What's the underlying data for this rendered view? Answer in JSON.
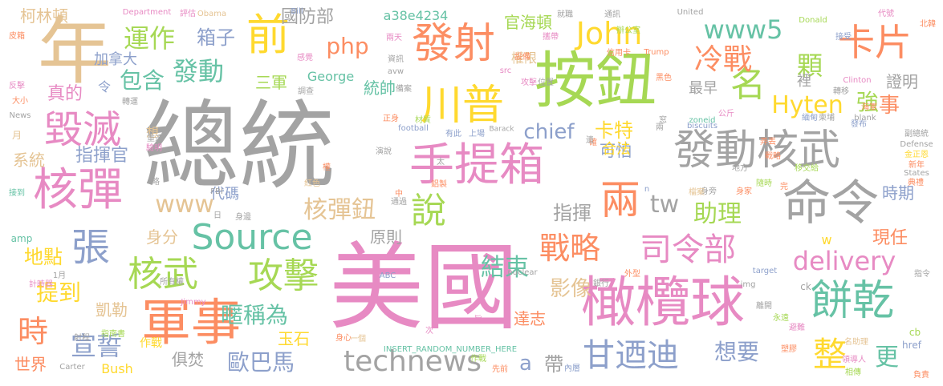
{
  "words": [
    {
      "text": "總統",
      "color": "#a3a3a3"
    },
    {
      "text": "美國",
      "color": "#e78ac3"
    },
    {
      "text": "按鈕",
      "color": "#a6d854"
    },
    {
      "text": "年",
      "color": "#e5c494"
    },
    {
      "text": "橄欖球",
      "color": "#e78ac3"
    },
    {
      "text": "軍事",
      "color": "#fc8d62"
    },
    {
      "text": "手提箱",
      "color": "#e78ac3"
    },
    {
      "text": "命令",
      "color": "#a3a3a3"
    },
    {
      "text": "發動核武",
      "color": "#a3a3a3"
    },
    {
      "text": "發射",
      "color": "#fc8d62"
    },
    {
      "text": "川普",
      "color": "#ffd92f"
    },
    {
      "text": "核彈",
      "color": "#e78ac3"
    },
    {
      "text": "Source",
      "color": "#66c2a5"
    },
    {
      "text": "前",
      "color": "#ffd92f"
    },
    {
      "text": "毀滅",
      "color": "#e78ac3"
    },
    {
      "text": "餅乾",
      "color": "#66c2a5"
    },
    {
      "text": "攻擊",
      "color": "#a6d854"
    },
    {
      "text": "核武",
      "color": "#a6d854"
    },
    {
      "text": "卡片",
      "color": "#fc8d62"
    },
    {
      "text": "司令部",
      "color": "#e78ac3"
    },
    {
      "text": "甘迺迪",
      "color": "#8da0cb"
    },
    {
      "text": "兩",
      "color": "#fc8d62"
    },
    {
      "text": "technews",
      "color": "#a3a3a3"
    },
    {
      "text": "名",
      "color": "#a6d854"
    },
    {
      "text": "John",
      "color": "#ffd92f"
    },
    {
      "text": "戰略",
      "color": "#fc8d62"
    },
    {
      "text": "張",
      "color": "#8da0cb"
    },
    {
      "text": "說",
      "color": "#a6d854"
    },
    {
      "text": "整",
      "color": "#ffd92f"
    },
    {
      "text": "時",
      "color": "#fc8d62"
    },
    {
      "text": "冷戰",
      "color": "#fc8d62"
    },
    {
      "text": "運作",
      "color": "#a6d854"
    },
    {
      "text": "宣誓",
      "color": "#8da0cb"
    },
    {
      "text": "www5",
      "color": "#66c2a5"
    },
    {
      "text": "delivery",
      "color": "#e78ac3"
    },
    {
      "text": "核彈鈕",
      "color": "#e5c494"
    },
    {
      "text": "www",
      "color": "#e5c494"
    },
    {
      "text": "發動",
      "color": "#66c2a5"
    },
    {
      "text": "結束",
      "color": "#66c2a5"
    },
    {
      "text": "tw",
      "color": "#a3a3a3"
    },
    {
      "text": "助理",
      "color": "#a6d854"
    },
    {
      "text": "php",
      "color": "#fc8d62"
    },
    {
      "text": "顆",
      "color": "#a6d854"
    },
    {
      "text": "Hyten",
      "color": "#ffd92f"
    },
    {
      "text": "提到",
      "color": "#ffd92f"
    },
    {
      "text": "更",
      "color": "#66c2a5"
    },
    {
      "text": "想要",
      "color": "#8da0cb"
    },
    {
      "text": "歐巴馬",
      "color": "#8da0cb"
    },
    {
      "text": "暱稱為",
      "color": "#66c2a5"
    },
    {
      "text": "箱子",
      "color": "#8da0cb"
    },
    {
      "text": "包含",
      "color": "#66c2a5"
    },
    {
      "text": "強",
      "color": "#a6d854"
    },
    {
      "text": "指揮官",
      "color": "#8da0cb"
    },
    {
      "text": "chief",
      "color": "#8da0cb"
    },
    {
      "text": "a",
      "color": "#8da0cb"
    },
    {
      "text": "帶",
      "color": "#a3a3a3"
    },
    {
      "text": "影像",
      "color": "#e5c494"
    },
    {
      "text": "地點",
      "color": "#ffd92f"
    },
    {
      "text": "卡特",
      "color": "#ffd92f"
    },
    {
      "text": "指揮",
      "color": "#a3a3a3"
    },
    {
      "text": "事",
      "color": "#fc8d62"
    },
    {
      "text": "現任",
      "color": "#fc8d62"
    },
    {
      "text": "官海頓",
      "color": "#a6d854"
    },
    {
      "text": "國防部",
      "color": "#a3a3a3"
    },
    {
      "text": "柯林頓",
      "color": "#e5c494"
    },
    {
      "text": "三軍",
      "color": "#a6d854"
    },
    {
      "text": "統帥",
      "color": "#66c2a5"
    },
    {
      "text": "系統",
      "color": "#e5c494"
    },
    {
      "text": "加拿大",
      "color": "#8da0cb"
    },
    {
      "text": "真的",
      "color": "#e78ac3"
    },
    {
      "text": "玉石",
      "color": "#ffd92f"
    },
    {
      "text": "達志",
      "color": "#fc8d62"
    },
    {
      "text": "世界",
      "color": "#fc8d62"
    },
    {
      "text": "時期",
      "color": "#8da0cb"
    },
    {
      "text": "可怕",
      "color": "#8da0cb"
    },
    {
      "text": "最早",
      "color": "#a3a3a3"
    },
    {
      "text": "證明",
      "color": "#a3a3a3"
    },
    {
      "text": "原則",
      "color": "#a3a3a3"
    },
    {
      "text": "身分",
      "color": "#e5c494"
    },
    {
      "text": "代碼",
      "color": "#8da0cb"
    },
    {
      "text": "凱勒",
      "color": "#e5c494"
    },
    {
      "text": "俱焚",
      "color": "#a3a3a3"
    },
    {
      "text": "合法",
      "color": "#ffd92f"
    },
    {
      "text": "Bush",
      "color": "#ffd92f"
    },
    {
      "text": "George",
      "color": "#66c2a5"
    },
    {
      "text": "a38e4234",
      "color": "#66c2a5"
    },
    {
      "text": "權限",
      "color": "#e5c494"
    },
    {
      "text": "裡",
      "color": "#a3a3a3"
    },
    {
      "text": "w",
      "color": "#ffd92f"
    },
    {
      "text": "cb",
      "color": "#a6d854"
    },
    {
      "text": "href",
      "color": "#8da0cb"
    },
    {
      "text": "ck",
      "color": "#a3a3a3"
    },
    {
      "text": "amp",
      "color": "#66c2a5"
    },
    {
      "text": "令",
      "color": "#8da0cb"
    },
    {
      "text": "想",
      "color": "#e5c494"
    },
    {
      "text": "月",
      "color": "#e5c494"
    },
    {
      "text": "作戰",
      "color": "#ffd92f"
    },
    {
      "text": "football",
      "color": "#8da0cb"
    },
    {
      "text": "nuclear",
      "color": "#a3a3a3"
    },
    {
      "text": "biscuits",
      "color": "#8da0cb"
    },
    {
      "text": "Department",
      "color": "#e78ac3"
    },
    {
      "text": "Obama",
      "color": "#e5c494"
    },
    {
      "text": "評估",
      "color": "#e78ac3"
    },
    {
      "text": "Bill",
      "color": "#8da0cb"
    },
    {
      "text": "United",
      "color": "#a3a3a3"
    },
    {
      "text": "Donald",
      "color": "#a6d854"
    },
    {
      "text": "代號",
      "color": "#e78ac3"
    },
    {
      "text": "北韓",
      "color": "#fc8d62"
    },
    {
      "text": "通訊",
      "color": "#a3a3a3"
    },
    {
      "text": "辦公室",
      "color": "#a6d854"
    },
    {
      "text": "就職",
      "color": "#a3a3a3"
    },
    {
      "text": "接受",
      "color": "#8da0cb"
    },
    {
      "text": "皮箱",
      "color": "#fc8d62"
    },
    {
      "text": "Trump",
      "color": "#fc8d62"
    },
    {
      "text": "Clinton",
      "color": "#e78ac3"
    },
    {
      "text": "Barack",
      "color": "#a3a3a3"
    },
    {
      "text": "Defense",
      "color": "#a3a3a3"
    },
    {
      "text": "States",
      "color": "#a3a3a3"
    },
    {
      "text": "blank",
      "color": "#a3a3a3"
    },
    {
      "text": "zoneid",
      "color": "#66c2a5"
    },
    {
      "text": "INSERT_RANDOM_NUMBER_HERE",
      "color": "#66c2a5"
    },
    {
      "text": "ABC",
      "color": "#8da0cb"
    },
    {
      "text": "Carter",
      "color": "#a3a3a3"
    },
    {
      "text": "Jimmy",
      "color": "#e78ac3"
    },
    {
      "text": "FBI",
      "color": "#a3a3a3"
    },
    {
      "text": "target",
      "color": "#8da0cb"
    },
    {
      "text": "img",
      "color": "#a3a3a3"
    },
    {
      "text": "src",
      "color": "#e78ac3"
    },
    {
      "text": "avw",
      "color": "#a3a3a3"
    },
    {
      "text": "News",
      "color": "#a3a3a3"
    },
    {
      "text": "信用卡",
      "color": "#fc8d62"
    },
    {
      "text": "設備",
      "color": "#fc8d62"
    },
    {
      "text": "資訊",
      "color": "#a3a3a3"
    },
    {
      "text": "攻擊",
      "color": "#e78ac3"
    },
    {
      "text": "黑色",
      "color": "#fc8d62"
    },
    {
      "text": "轉移",
      "color": "#a3a3a3"
    },
    {
      "text": "海軍",
      "color": "#fc8d62"
    },
    {
      "text": "發布",
      "color": "#8da0cb"
    },
    {
      "text": "副總統",
      "color": "#a3a3a3"
    },
    {
      "text": "金正恩",
      "color": "#ffd92f"
    },
    {
      "text": "新年",
      "color": "#fc8d62"
    },
    {
      "text": "典禮",
      "color": "#fc8d62"
    },
    {
      "text": "移交給",
      "color": "#a6d854"
    },
    {
      "text": "身家",
      "color": "#fc8d62"
    },
    {
      "text": "身旁",
      "color": "#a3a3a3"
    },
    {
      "text": "戰略",
      "color": "#fc8d62"
    },
    {
      "text": "地方",
      "color": "#a3a3a3"
    },
    {
      "text": "弄丟",
      "color": "#fc8d62"
    },
    {
      "text": "公斤",
      "color": "#e78ac3"
    },
    {
      "text": "隨時",
      "color": "#a6d854"
    },
    {
      "text": "離開",
      "color": "#a3a3a3"
    },
    {
      "text": "永遠",
      "color": "#a6d854"
    },
    {
      "text": "避難",
      "color": "#e78ac3"
    },
    {
      "text": "名助理",
      "color": "#e5c494"
    },
    {
      "text": "塑膠",
      "color": "#fc8d62"
    },
    {
      "text": "相傳",
      "color": "#a6d854"
    },
    {
      "text": "負責",
      "color": "#fc8d62"
    },
    {
      "text": "指令",
      "color": "#a3a3a3"
    },
    {
      "text": "領導人",
      "color": "#e78ac3"
    },
    {
      "text": "外型",
      "color": "#fc8d62"
    },
    {
      "text": "身心",
      "color": "#fc8d62"
    },
    {
      "text": "內層",
      "color": "#8da0cb"
    },
    {
      "text": "先前",
      "color": "#fc8d62"
    },
    {
      "text": "銀行",
      "color": "#a3a3a3"
    },
    {
      "text": "次",
      "color": "#e78ac3"
    },
    {
      "text": "作戰",
      "color": "#a6d854"
    },
    {
      "text": "演說",
      "color": "#a3a3a3"
    },
    {
      "text": "通過",
      "color": "#a3a3a3"
    },
    {
      "text": "上場",
      "color": "#8da0cb"
    },
    {
      "text": "有此",
      "color": "#8da0cb"
    },
    {
      "text": "太",
      "color": "#a3a3a3"
    },
    {
      "text": "鋁製",
      "color": "#fc8d62"
    },
    {
      "text": "紅色",
      "color": "#e5c494"
    },
    {
      "text": "權",
      "color": "#fc8d62"
    },
    {
      "text": "日",
      "color": "#a3a3a3"
    },
    {
      "text": "身邊",
      "color": "#a3a3a3"
    },
    {
      "text": "所有權",
      "color": "#a3a3a3"
    },
    {
      "text": "計時器",
      "color": "#e78ac3"
    },
    {
      "text": "指南書",
      "color": "#a6d854"
    },
    {
      "text": "射程",
      "color": "#a3a3a3"
    },
    {
      "text": "1月",
      "color": "#a3a3a3"
    },
    {
      "text": "重達",
      "color": "#a3a3a3"
    },
    {
      "text": "驗明",
      "color": "#e78ac3"
    },
    {
      "text": "略",
      "color": "#a3a3a3"
    },
    {
      "text": "接到",
      "color": "#66c2a5"
    },
    {
      "text": "大小",
      "color": "#fc8d62"
    },
    {
      "text": "反擊",
      "color": "#e78ac3"
    },
    {
      "text": "轉運",
      "color": "#a3a3a3"
    },
    {
      "text": "調查",
      "color": "#a3a3a3"
    },
    {
      "text": "感覺",
      "color": "#e78ac3"
    },
    {
      "text": "兩天",
      "color": "#e78ac3"
    },
    {
      "text": "材質",
      "color": "#a6d854"
    },
    {
      "text": "正身",
      "color": "#fc8d62"
    },
    {
      "text": "備案",
      "color": "#a3a3a3"
    },
    {
      "text": "攜帶",
      "color": "#e78ac3"
    },
    {
      "text": "位置",
      "color": "#a3a3a3"
    },
    {
      "text": "檔案",
      "color": "#e5c494"
    },
    {
      "text": "確",
      "color": "#fc8d62"
    },
    {
      "text": "兩",
      "color": "#a3a3a3"
    },
    {
      "text": "完",
      "color": "#fc8d62"
    },
    {
      "text": "中",
      "color": "#fc8d62"
    },
    {
      "text": "一個",
      "color": "#e5c494"
    },
    {
      "text": "緬甸",
      "color": "#8da0cb"
    },
    {
      "text": "柬埔",
      "color": "#a3a3a3"
    },
    {
      "text": "n",
      "color": "#8da0cb"
    },
    {
      "text": "窓",
      "color": "#a3a3a3"
    },
    {
      "text": "遺",
      "color": "#a3a3a3"
    },
    {
      "text": "旨",
      "color": "#e78ac3"
    }
  ]
}
